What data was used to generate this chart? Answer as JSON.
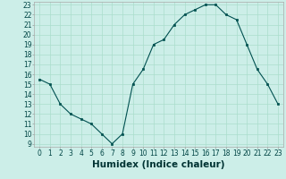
{
  "x": [
    0,
    1,
    2,
    3,
    4,
    5,
    6,
    7,
    8,
    9,
    10,
    11,
    12,
    13,
    14,
    15,
    16,
    17,
    18,
    19,
    20,
    21,
    22,
    23
  ],
  "y": [
    15.5,
    15.0,
    13.0,
    12.0,
    11.5,
    11.0,
    10.0,
    9.0,
    10.0,
    15.0,
    16.5,
    19.0,
    19.5,
    21.0,
    22.0,
    22.5,
    23.0,
    23.0,
    22.0,
    21.5,
    19.0,
    16.5,
    15.0,
    13.0
  ],
  "xlabel": "Humidex (Indice chaleur)",
  "ylim_min": 9,
  "ylim_max": 23,
  "xlim_min": -0.5,
  "xlim_max": 23.5,
  "yticks": [
    9,
    10,
    11,
    12,
    13,
    14,
    15,
    16,
    17,
    18,
    19,
    20,
    21,
    22,
    23
  ],
  "xticks": [
    0,
    1,
    2,
    3,
    4,
    5,
    6,
    7,
    8,
    9,
    10,
    11,
    12,
    13,
    14,
    15,
    16,
    17,
    18,
    19,
    20,
    21,
    22,
    23
  ],
  "line_color": "#005050",
  "marker_color": "#005050",
  "bg_color": "#cceee8",
  "grid_color": "#aaddcc",
  "xlabel_fontsize": 7.5,
  "tick_fontsize": 5.5
}
